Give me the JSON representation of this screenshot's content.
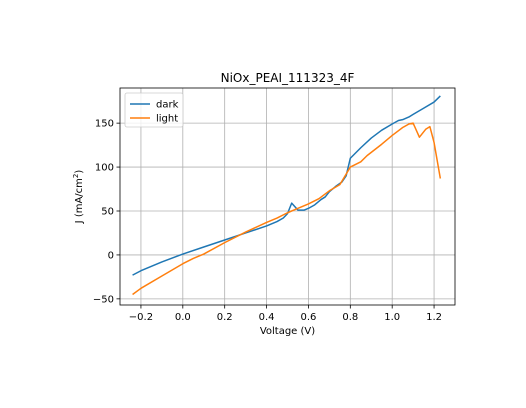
{
  "chart_data": {
    "type": "line",
    "title": "NiOx_PEAI_111323_4F",
    "xlabel": "Voltage (V)",
    "ylabel_main": "J (mA/cm",
    "ylabel_sup": "2",
    "ylabel_close": ")",
    "xlim": [
      -0.3,
      1.3
    ],
    "ylim": [
      -57,
      190
    ],
    "xticks": [
      -0.2,
      0.0,
      0.2,
      0.4,
      0.6,
      0.8,
      1.0,
      1.2
    ],
    "xtick_labels": [
      "−0.2",
      "0.0",
      "0.2",
      "0.4",
      "0.6",
      "0.8",
      "1.0",
      "1.2"
    ],
    "yticks": [
      -50,
      0,
      50,
      100,
      150
    ],
    "ytick_labels": [
      "−50",
      "0",
      "50",
      "100",
      "150"
    ],
    "grid": true,
    "legend_position": "top-left",
    "series": [
      {
        "name": "dark",
        "color": "#1f77b4",
        "x": [
          -0.24,
          -0.2,
          -0.1,
          0.0,
          0.1,
          0.2,
          0.3,
          0.4,
          0.45,
          0.48,
          0.5,
          0.52,
          0.55,
          0.58,
          0.6,
          0.63,
          0.66,
          0.68,
          0.7,
          0.73,
          0.76,
          0.78,
          0.8,
          0.85,
          0.9,
          0.95,
          1.0,
          1.03,
          1.05,
          1.08,
          1.1,
          1.15,
          1.2,
          1.23
        ],
        "y": [
          -23,
          -18,
          -8,
          1,
          9,
          17,
          25,
          33,
          38,
          42,
          47,
          59,
          51,
          51,
          53,
          57,
          63,
          66,
          72,
          78,
          83,
          90,
          110,
          122,
          133,
          142,
          149,
          153,
          154,
          157,
          160,
          167,
          174,
          181
        ]
      },
      {
        "name": "light",
        "color": "#ff7f0e",
        "x": [
          -0.24,
          -0.2,
          -0.1,
          0.0,
          0.05,
          0.1,
          0.2,
          0.3,
          0.4,
          0.45,
          0.5,
          0.55,
          0.6,
          0.65,
          0.7,
          0.75,
          0.78,
          0.8,
          0.85,
          0.88,
          0.95,
          1.0,
          1.05,
          1.08,
          1.1,
          1.13,
          1.16,
          1.18,
          1.2,
          1.23
        ],
        "y": [
          -45,
          -38,
          -24,
          -10,
          -4,
          1,
          14,
          26,
          37,
          42,
          48,
          53,
          58,
          64,
          73,
          80,
          92,
          100,
          106,
          113,
          126,
          136,
          145,
          149,
          150,
          134,
          143,
          146,
          128,
          87
        ]
      }
    ]
  }
}
